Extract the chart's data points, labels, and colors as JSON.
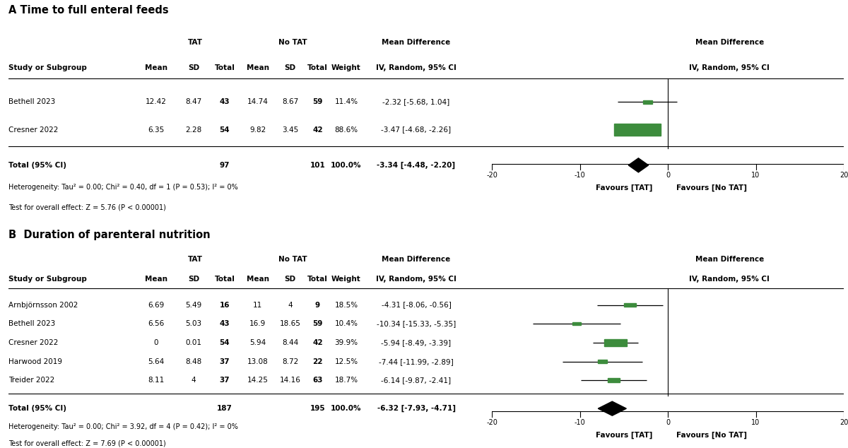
{
  "panel_A": {
    "title": "A Time to full enteral feeds",
    "studies": [
      {
        "name": "Bethell 2023",
        "tat_mean": "12.42",
        "tat_sd": "8.47",
        "tat_n": "43",
        "notat_mean": "14.74",
        "notat_sd": "8.67",
        "notat_n": "59",
        "weight": "11.4%",
        "md": -2.32,
        "ci_lo": -5.68,
        "ci_hi": 1.04,
        "ci_str": "-2.32 [-5.68, 1.04]"
      },
      {
        "name": "Cresner 2022",
        "tat_mean": "6.35",
        "tat_sd": "2.28",
        "tat_n": "54",
        "notat_mean": "9.82",
        "notat_sd": "3.45",
        "notat_n": "42",
        "weight": "88.6%",
        "md": -3.47,
        "ci_lo": -4.68,
        "ci_hi": -2.26,
        "ci_str": "-3.47 [-4.68, -2.26]"
      }
    ],
    "total": {
      "n_tat": "97",
      "n_notat": "101",
      "weight": "100.0%",
      "md": -3.34,
      "ci_lo": -4.48,
      "ci_hi": -2.2,
      "ci_str": "-3.34 [-4.48, -2.20]"
    },
    "heterogeneity": "Heterogeneity: Tau² = 0.00; Chi² = 0.40, df = 1 (P = 0.53); I² = 0%",
    "test_effect": "Test for overall effect: Z = 5.76 (P < 0.00001)"
  },
  "panel_B": {
    "title": "B  Duration of parenteral nutrition",
    "studies": [
      {
        "name": "Arnbjörnsson 2002",
        "tat_mean": "6.69",
        "tat_sd": "5.49",
        "tat_n": "16",
        "notat_mean": "11",
        "notat_sd": "4",
        "notat_n": "9",
        "weight": "18.5%",
        "md": -4.31,
        "ci_lo": -8.06,
        "ci_hi": -0.56,
        "ci_str": "-4.31 [-8.06, -0.56]"
      },
      {
        "name": "Bethell 2023",
        "tat_mean": "6.56",
        "tat_sd": "5.03",
        "tat_n": "43",
        "notat_mean": "16.9",
        "notat_sd": "18.65",
        "notat_n": "59",
        "weight": "10.4%",
        "md": -10.34,
        "ci_lo": -15.33,
        "ci_hi": -5.35,
        "ci_str": "-10.34 [-15.33, -5.35]"
      },
      {
        "name": "Cresner 2022",
        "tat_mean": "0",
        "tat_sd": "0.01",
        "tat_n": "54",
        "notat_mean": "5.94",
        "notat_sd": "8.44",
        "notat_n": "42",
        "weight": "39.9%",
        "md": -5.94,
        "ci_lo": -8.49,
        "ci_hi": -3.39,
        "ci_str": "-5.94 [-8.49, -3.39]"
      },
      {
        "name": "Harwood 2019",
        "tat_mean": "5.64",
        "tat_sd": "8.48",
        "tat_n": "37",
        "notat_mean": "13.08",
        "notat_sd": "8.72",
        "notat_n": "22",
        "weight": "12.5%",
        "md": -7.44,
        "ci_lo": -11.99,
        "ci_hi": -2.89,
        "ci_str": "-7.44 [-11.99, -2.89]"
      },
      {
        "name": "Treider 2022",
        "tat_mean": "8.11",
        "tat_sd": "4",
        "tat_n": "37",
        "notat_mean": "14.25",
        "notat_sd": "14.16",
        "notat_n": "63",
        "weight": "18.7%",
        "md": -6.14,
        "ci_lo": -9.87,
        "ci_hi": -2.41,
        "ci_str": "-6.14 [-9.87, -2.41]"
      }
    ],
    "total": {
      "n_tat": "187",
      "n_notat": "195",
      "weight": "100.0%",
      "md": -6.32,
      "ci_lo": -7.93,
      "ci_hi": -4.71,
      "ci_str": "-6.32 [-7.93, -4.71]"
    },
    "heterogeneity": "Heterogeneity: Tau² = 0.00; Chi² = 3.92, df = 4 (P = 0.42); I² = 0%",
    "test_effect": "Test for overall effect: Z = 7.69 (P < 0.00001)"
  },
  "green_color": "#3d8c3d",
  "black_color": "#000000",
  "background_color": "#ffffff",
  "axis_lim": [
    -20,
    20
  ],
  "axis_ticks": [
    -20,
    -10,
    0,
    10,
    20
  ],
  "x_label_left": "Favours [TAT]",
  "x_label_right": "Favours [No TAT]",
  "font_size": 7.5,
  "title_font_size": 10.5
}
